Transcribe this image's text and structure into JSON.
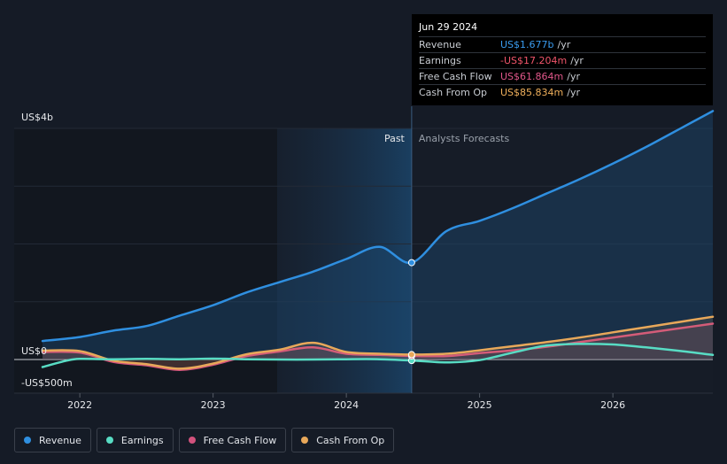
{
  "chart_data": {
    "type": "line",
    "y_axis": {
      "top_label": "US$4b",
      "zero_label": "US$0",
      "bottom_label": "-US$500m",
      "ylim": [
        -500,
        4000
      ],
      "unit": "US$ m"
    },
    "x_axis": {
      "ticks": [
        "2022",
        "2023",
        "2024",
        "2025",
        "2026"
      ],
      "xlim": [
        2021.72,
        2026.75
      ]
    },
    "divider": {
      "date": 2024.49,
      "past_label": "Past",
      "forecast_label": "Analysts Forecasts"
    },
    "series": [
      {
        "name": "Revenue",
        "color": "#2f8fe0",
        "x": [
          2021.72,
          2022.0,
          2022.25,
          2022.5,
          2022.75,
          2023.0,
          2023.25,
          2023.5,
          2023.75,
          2024.0,
          2024.25,
          2024.49,
          2024.75,
          2025.0,
          2025.25,
          2025.5,
          2025.75,
          2026.0,
          2026.25,
          2026.5,
          2026.75
        ],
        "values": [
          320,
          390,
          500,
          580,
          760,
          940,
          1160,
          1340,
          1520,
          1740,
          1950,
          1677,
          2220,
          2400,
          2620,
          2870,
          3120,
          3390,
          3680,
          3990,
          4300
        ]
      },
      {
        "name": "Earnings",
        "color": "#58dcc4",
        "x": [
          2021.72,
          2021.9,
          2022.0,
          2022.25,
          2022.5,
          2022.75,
          2023.0,
          2023.25,
          2023.5,
          2023.75,
          2024.0,
          2024.25,
          2024.49,
          2024.75,
          2025.0,
          2025.25,
          2025.5,
          2025.75,
          2026.0,
          2026.25,
          2026.5,
          2026.75
        ],
        "values": [
          -130,
          -20,
          10,
          5,
          10,
          5,
          15,
          5,
          0,
          0,
          5,
          5,
          -17.204,
          -50,
          -10,
          120,
          240,
          270,
          260,
          210,
          150,
          80
        ]
      },
      {
        "name": "Free Cash Flow",
        "color": "#d2527d",
        "x": [
          2021.72,
          2022.0,
          2022.25,
          2022.5,
          2022.75,
          2023.0,
          2023.25,
          2023.5,
          2023.75,
          2024.0,
          2024.25,
          2024.49,
          2024.75,
          2025.0,
          2025.25,
          2025.5,
          2025.75,
          2026.0,
          2026.25,
          2026.5,
          2026.75
        ],
        "values": [
          130,
          120,
          -40,
          -100,
          -180,
          -90,
          60,
          140,
          210,
          100,
          80,
          61.864,
          60,
          110,
          160,
          220,
          300,
          380,
          460,
          540,
          620
        ]
      },
      {
        "name": "Cash From Op",
        "color": "#e8a85a",
        "x": [
          2021.72,
          2022.0,
          2022.25,
          2022.5,
          2022.75,
          2023.0,
          2023.25,
          2023.5,
          2023.75,
          2024.0,
          2024.25,
          2024.49,
          2024.75,
          2025.0,
          2025.25,
          2025.5,
          2025.75,
          2026.0,
          2026.25,
          2026.5,
          2026.75
        ],
        "values": [
          155,
          145,
          -20,
          -80,
          -160,
          -70,
          90,
          170,
          290,
          130,
          100,
          85.834,
          100,
          160,
          230,
          300,
          380,
          470,
          560,
          650,
          740
        ]
      }
    ]
  },
  "tooltip": {
    "date": "Jun 29 2024",
    "rows": [
      {
        "label": "Revenue",
        "value": "US$1.677b",
        "unit": "/yr",
        "color": "#3a9cf0"
      },
      {
        "label": "Earnings",
        "value": "-US$17.204m",
        "unit": "/yr",
        "color": "#f0556a"
      },
      {
        "label": "Free Cash Flow",
        "value": "US$61.864m",
        "unit": "/yr",
        "color": "#e0578a"
      },
      {
        "label": "Cash From Op",
        "value": "US$85.834m",
        "unit": "/yr",
        "color": "#f0b05c"
      }
    ]
  },
  "legend": [
    {
      "label": "Revenue",
      "color": "#2f8fe0"
    },
    {
      "label": "Earnings",
      "color": "#58dcc4"
    },
    {
      "label": "Free Cash Flow",
      "color": "#d2527d"
    },
    {
      "label": "Cash From Op",
      "color": "#e8a85a"
    }
  ]
}
